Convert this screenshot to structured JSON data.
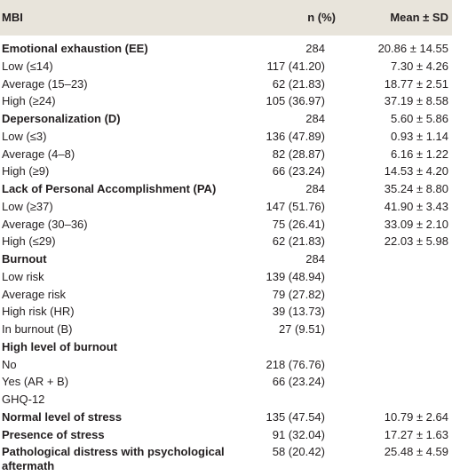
{
  "table": {
    "header": [
      "MBI",
      "n (%)",
      "Mean ± SD"
    ],
    "rows": [
      {
        "label": "Emotional exhaustion (EE)",
        "n": "284",
        "mean": "20.86 ± 14.55",
        "bold": true
      },
      {
        "label": "Low (≤14)",
        "n": "117 (41.20)",
        "mean": "7.30 ± 4.26"
      },
      {
        "label": "Average (15–23)",
        "n": "62 (21.83)",
        "mean": "18.77 ± 2.51"
      },
      {
        "label": "High (≥24)",
        "n": "105 (36.97)",
        "mean": "37.19 ± 8.58"
      },
      {
        "label": "Depersonalization (D)",
        "n": "284",
        "mean": "5.60 ± 5.86",
        "bold": true
      },
      {
        "label": "Low (≤3)",
        "n": "136 (47.89)",
        "mean": "0.93 ± 1.14"
      },
      {
        "label": "Average (4–8)",
        "n": "82 (28.87)",
        "mean": "6.16 ± 1.22"
      },
      {
        "label": "High (≥9)",
        "n": "66 (23.24)",
        "mean": "14.53 ± 4.20"
      },
      {
        "label": "Lack of Personal Accomplishment (PA)",
        "n": "284",
        "mean": "35.24 ± 8.80",
        "bold": true
      },
      {
        "label": "Low (≥37)",
        "n": "147 (51.76)",
        "mean": "41.90 ± 3.43"
      },
      {
        "label": "Average (30–36)",
        "n": "75 (26.41)",
        "mean": "33.09 ± 2.10"
      },
      {
        "label": "High (≤29)",
        "n": "62 (21.83)",
        "mean": "22.03 ± 5.98"
      },
      {
        "label": "Burnout",
        "n": "284",
        "bold": true
      },
      {
        "label": "Low risk",
        "n": "139 (48.94)"
      },
      {
        "label": "Average risk",
        "n": "79 (27.82)"
      },
      {
        "label": "High risk (HR)",
        "n": "39 (13.73)"
      },
      {
        "label": "In burnout (B)",
        "n": "27 (9.51)"
      },
      {
        "label": "High level of burnout",
        "bold": true
      },
      {
        "label": "No",
        "n": "218 (76.76)"
      },
      {
        "label": "Yes (AR + B)",
        "n": "66 (23.24)"
      },
      {
        "label": "GHQ-12"
      },
      {
        "label": "Normal level of stress",
        "n": "135 (47.54)",
        "mean": "10.79 ± 2.64",
        "bold": true
      },
      {
        "label": "Presence of stress",
        "n": "91 (32.04)",
        "mean": "17.27 ± 1.63",
        "bold": true
      },
      {
        "label": "Pathological distress with psychological aftermath",
        "n": "58 (20.42)",
        "mean": "25.48 ± 4.59",
        "bold": true
      }
    ]
  }
}
